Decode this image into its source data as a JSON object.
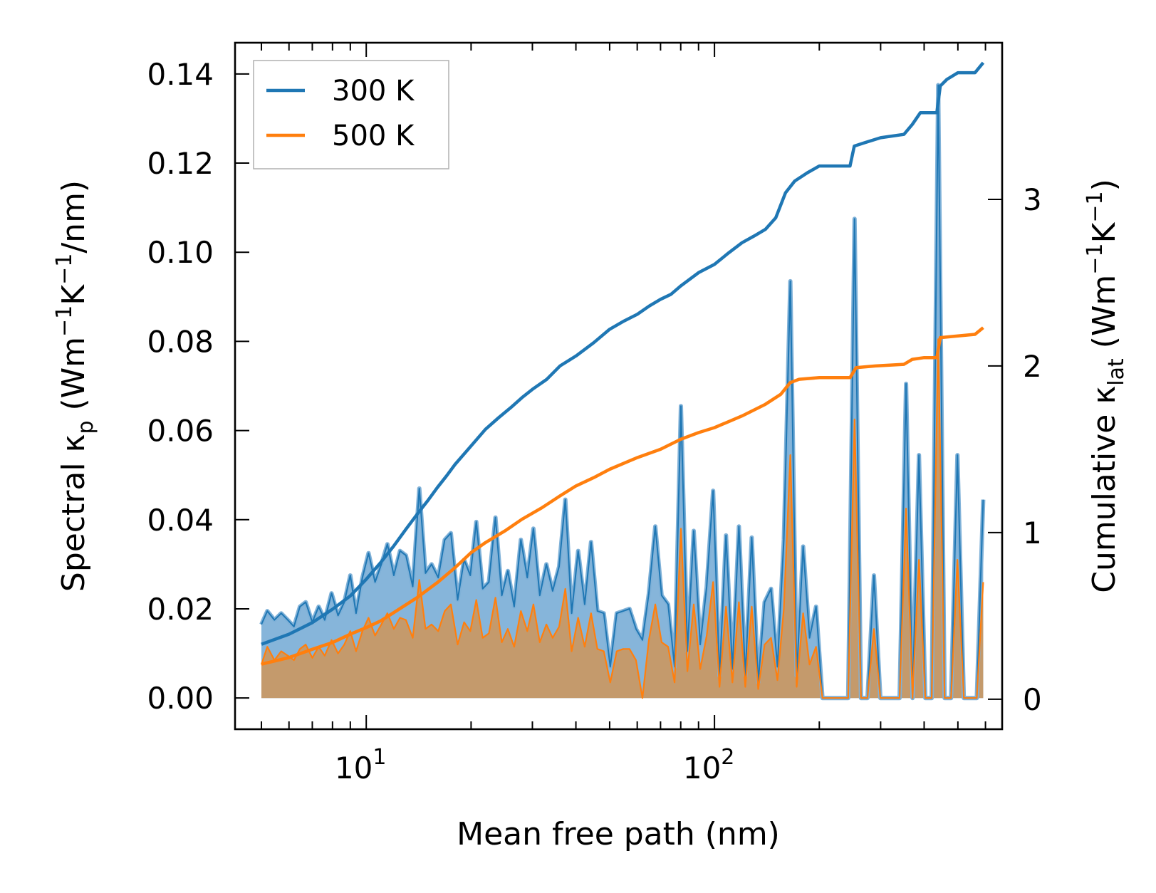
{
  "chart_data": {
    "type": "line",
    "title": "",
    "xlabel": "Mean free path (nm)",
    "ylabel": {
      "prefix": "Spectral κ",
      "sub": "p",
      "suffix": " (Wm",
      "sup1": "−1",
      "mid": "K",
      "sup2": "−1",
      "end": "/nm)"
    },
    "y2label": {
      "prefix": "Cumulative κ",
      "sub": "lat",
      "suffix": " (Wm",
      "sup1": "−1",
      "mid": "K",
      "sup2": "−1",
      "end": ")"
    },
    "xscale": "log",
    "xlim": [
      4.2,
      670
    ],
    "ylim": [
      -0.007,
      0.147
    ],
    "y2lim": [
      -0.18,
      3.94
    ],
    "xticks": [
      {
        "value": 10,
        "base": "10",
        "exp": "1"
      },
      {
        "value": 100,
        "base": "10",
        "exp": "2"
      }
    ],
    "yticks": [
      "0.00",
      "0.02",
      "0.04",
      "0.06",
      "0.08",
      "0.10",
      "0.12",
      "0.14"
    ],
    "y2ticks": [
      "0",
      "1",
      "2",
      "3"
    ],
    "legend": {
      "position": "upper-left",
      "entries": [
        "300 K",
        "500 K"
      ]
    },
    "colors": {
      "t300": "#1f77b4",
      "t500": "#ff7f0e",
      "fill300": "#7fb1d8",
      "fill500": "#c49a6c"
    },
    "spectral_300K": [
      [
        5.0,
        0.0165
      ],
      [
        5.2,
        0.0195
      ],
      [
        5.45,
        0.0175
      ],
      [
        5.7,
        0.019
      ],
      [
        5.95,
        0.0175
      ],
      [
        6.2,
        0.016
      ],
      [
        6.45,
        0.0205
      ],
      [
        6.7,
        0.0215
      ],
      [
        7.0,
        0.017
      ],
      [
        7.3,
        0.0205
      ],
      [
        7.6,
        0.0175
      ],
      [
        7.95,
        0.0235
      ],
      [
        8.3,
        0.0185
      ],
      [
        8.65,
        0.0215
      ],
      [
        9.0,
        0.0275
      ],
      [
        9.35,
        0.019
      ],
      [
        9.75,
        0.027
      ],
      [
        10.15,
        0.0325
      ],
      [
        10.6,
        0.026
      ],
      [
        11.05,
        0.03
      ],
      [
        11.5,
        0.0345
      ],
      [
        12.0,
        0.0275
      ],
      [
        12.5,
        0.033
      ],
      [
        13.0,
        0.032
      ],
      [
        13.6,
        0.025
      ],
      [
        14.2,
        0.047
      ],
      [
        14.8,
        0.028
      ],
      [
        15.4,
        0.03
      ],
      [
        16.1,
        0.027
      ],
      [
        16.8,
        0.0355
      ],
      [
        17.5,
        0.037
      ],
      [
        18.3,
        0.022
      ],
      [
        19.1,
        0.031
      ],
      [
        19.9,
        0.0275
      ],
      [
        20.7,
        0.0395
      ],
      [
        21.6,
        0.0245
      ],
      [
        22.5,
        0.026
      ],
      [
        23.5,
        0.0405
      ],
      [
        24.5,
        0.023
      ],
      [
        25.5,
        0.0285
      ],
      [
        26.6,
        0.0205
      ],
      [
        27.8,
        0.0355
      ],
      [
        29.0,
        0.027
      ],
      [
        30.2,
        0.038
      ],
      [
        31.5,
        0.023
      ],
      [
        32.9,
        0.03
      ],
      [
        34.3,
        0.024
      ],
      [
        35.8,
        0.0295
      ],
      [
        37.3,
        0.0445
      ],
      [
        38.9,
        0.019
      ],
      [
        40.6,
        0.033
      ],
      [
        42.4,
        0.021
      ],
      [
        44.2,
        0.035
      ],
      [
        46.1,
        0.0195
      ],
      [
        48.1,
        0.019
      ],
      [
        50.2,
        0.007
      ],
      [
        52.4,
        0.019
      ],
      [
        54.7,
        0.0195
      ],
      [
        57.0,
        0.02
      ],
      [
        59.5,
        0.0155
      ],
      [
        62.1,
        0.013
      ],
      [
        64.8,
        0.0235
      ],
      [
        67.6,
        0.0385
      ],
      [
        70.5,
        0.023
      ],
      [
        73.6,
        0.021
      ],
      [
        76.8,
        0.007
      ],
      [
        80.1,
        0.0655
      ],
      [
        83.6,
        0.0105
      ],
      [
        87.2,
        0.0375
      ],
      [
        91.0,
        0.012
      ],
      [
        95.0,
        0.025
      ],
      [
        99.1,
        0.0465
      ],
      [
        103.4,
        0.005
      ],
      [
        107.9,
        0.0365
      ],
      [
        112.6,
        0.0065
      ],
      [
        117.5,
        0.0385
      ],
      [
        122.6,
        0.005
      ],
      [
        127.9,
        0.036
      ],
      [
        133.5,
        0.0035
      ],
      [
        139.3,
        0.0215
      ],
      [
        145.3,
        0.0245
      ],
      [
        151.6,
        0.007
      ],
      [
        158.2,
        0.0355
      ],
      [
        165.1,
        0.0935
      ],
      [
        172.2,
        0.005
      ],
      [
        179.7,
        0.034
      ],
      [
        187.5,
        0.0135
      ],
      [
        195.7,
        0.0205
      ],
      [
        204.2,
        0.0
      ],
      [
        213.1,
        0.0
      ],
      [
        222.3,
        0.0
      ],
      [
        232.0,
        0.0
      ],
      [
        242.0,
        0.0
      ],
      [
        252.5,
        0.1075
      ],
      [
        263.5,
        0.0
      ],
      [
        275.0,
        0.0
      ],
      [
        287.0,
        0.0275
      ],
      [
        299.5,
        0.0
      ],
      [
        312.5,
        0.0
      ],
      [
        326.0,
        0.0
      ],
      [
        340.0,
        0.0
      ],
      [
        355.0,
        0.0705
      ],
      [
        370.5,
        0.0
      ],
      [
        386.5,
        0.0545
      ],
      [
        403.0,
        0.0
      ],
      [
        420.5,
        0.0
      ],
      [
        439.0,
        0.1375
      ],
      [
        458.0,
        0.0
      ],
      [
        478.0,
        0.0
      ],
      [
        498.5,
        0.0545
      ],
      [
        520.0,
        0.0
      ],
      [
        543.0,
        0.0
      ],
      [
        566.5,
        0.0
      ],
      [
        591.0,
        0.0445
      ]
    ],
    "spectral_500K": [
      [
        5.0,
        0.0075
      ],
      [
        5.2,
        0.0115
      ],
      [
        5.45,
        0.0085
      ],
      [
        5.7,
        0.0105
      ],
      [
        5.95,
        0.0095
      ],
      [
        6.2,
        0.0085
      ],
      [
        6.45,
        0.011
      ],
      [
        6.7,
        0.012
      ],
      [
        7.0,
        0.009
      ],
      [
        7.3,
        0.0115
      ],
      [
        7.6,
        0.0095
      ],
      [
        7.95,
        0.013
      ],
      [
        8.3,
        0.01
      ],
      [
        8.65,
        0.012
      ],
      [
        9.0,
        0.015
      ],
      [
        9.35,
        0.0105
      ],
      [
        9.75,
        0.015
      ],
      [
        10.15,
        0.018
      ],
      [
        10.6,
        0.014
      ],
      [
        11.05,
        0.0165
      ],
      [
        11.5,
        0.019
      ],
      [
        12.0,
        0.0155
      ],
      [
        12.5,
        0.018
      ],
      [
        13.0,
        0.0175
      ],
      [
        13.6,
        0.0135
      ],
      [
        14.2,
        0.0265
      ],
      [
        14.8,
        0.0155
      ],
      [
        15.4,
        0.0165
      ],
      [
        16.1,
        0.015
      ],
      [
        16.8,
        0.0195
      ],
      [
        17.5,
        0.021
      ],
      [
        18.3,
        0.012
      ],
      [
        19.1,
        0.017
      ],
      [
        19.9,
        0.015
      ],
      [
        20.7,
        0.022
      ],
      [
        21.6,
        0.0135
      ],
      [
        22.5,
        0.0145
      ],
      [
        23.5,
        0.0225
      ],
      [
        24.5,
        0.0125
      ],
      [
        25.5,
        0.0155
      ],
      [
        26.6,
        0.0115
      ],
      [
        27.8,
        0.0195
      ],
      [
        29.0,
        0.015
      ],
      [
        30.2,
        0.021
      ],
      [
        31.5,
        0.0125
      ],
      [
        32.9,
        0.0165
      ],
      [
        34.3,
        0.0135
      ],
      [
        35.8,
        0.016
      ],
      [
        37.3,
        0.0245
      ],
      [
        38.9,
        0.0105
      ],
      [
        40.6,
        0.018
      ],
      [
        42.4,
        0.0115
      ],
      [
        44.2,
        0.019
      ],
      [
        46.1,
        0.011
      ],
      [
        48.1,
        0.0105
      ],
      [
        50.2,
        0.0035
      ],
      [
        52.4,
        0.0105
      ],
      [
        54.7,
        0.011
      ],
      [
        57.0,
        0.011
      ],
      [
        59.5,
        0.0085
      ],
      [
        62.1,
        0.0
      ],
      [
        64.8,
        0.013
      ],
      [
        67.6,
        0.021
      ],
      [
        70.5,
        0.0125
      ],
      [
        73.6,
        0.0115
      ],
      [
        76.8,
        0.0035
      ],
      [
        80.1,
        0.038
      ],
      [
        83.6,
        0.006
      ],
      [
        87.2,
        0.021
      ],
      [
        91.0,
        0.0065
      ],
      [
        95.0,
        0.014
      ],
      [
        99.1,
        0.026
      ],
      [
        103.4,
        0.0025
      ],
      [
        107.9,
        0.0205
      ],
      [
        112.6,
        0.0035
      ],
      [
        117.5,
        0.0215
      ],
      [
        122.6,
        0.0025
      ],
      [
        127.9,
        0.0205
      ],
      [
        133.5,
        0.002
      ],
      [
        139.3,
        0.012
      ],
      [
        145.3,
        0.0135
      ],
      [
        151.6,
        0.004
      ],
      [
        158.2,
        0.02
      ],
      [
        165.1,
        0.0545
      ],
      [
        172.2,
        0.0025
      ],
      [
        179.7,
        0.019
      ],
      [
        187.5,
        0.0075
      ],
      [
        195.7,
        0.0115
      ],
      [
        204.2,
        0.0
      ],
      [
        213.1,
        0.0
      ],
      [
        222.3,
        0.0
      ],
      [
        232.0,
        0.0
      ],
      [
        242.0,
        0.0
      ],
      [
        252.5,
        0.0625
      ],
      [
        263.5,
        0.0
      ],
      [
        275.0,
        0.0
      ],
      [
        287.0,
        0.0155
      ],
      [
        299.5,
        0.0
      ],
      [
        312.5,
        0.0
      ],
      [
        326.0,
        0.0
      ],
      [
        340.0,
        0.0
      ],
      [
        355.0,
        0.0425
      ],
      [
        370.5,
        0.0
      ],
      [
        386.5,
        0.031
      ],
      [
        403.0,
        0.0
      ],
      [
        420.5,
        0.0
      ],
      [
        439.0,
        0.0805
      ],
      [
        458.0,
        0.0
      ],
      [
        478.0,
        0.0
      ],
      [
        498.5,
        0.031
      ],
      [
        520.0,
        0.0
      ],
      [
        543.0,
        0.0
      ],
      [
        566.5,
        0.0
      ],
      [
        591.0,
        0.026
      ]
    ],
    "cumulative_300K": [
      [
        5.0,
        0.33
      ],
      [
        6.0,
        0.39
      ],
      [
        7.0,
        0.46
      ],
      [
        8.0,
        0.54
      ],
      [
        9.0,
        0.62
      ],
      [
        10.0,
        0.72
      ],
      [
        11.0,
        0.82
      ],
      [
        12.0,
        0.92
      ],
      [
        13.0,
        1.02
      ],
      [
        14.0,
        1.11
      ],
      [
        15.0,
        1.19
      ],
      [
        16.0,
        1.27
      ],
      [
        17.0,
        1.34
      ],
      [
        18.0,
        1.41
      ],
      [
        20.0,
        1.52
      ],
      [
        22.0,
        1.62
      ],
      [
        24.0,
        1.69
      ],
      [
        26.0,
        1.75
      ],
      [
        28.0,
        1.81
      ],
      [
        30.0,
        1.86
      ],
      [
        33.0,
        1.92
      ],
      [
        36.0,
        2.0
      ],
      [
        40.0,
        2.06
      ],
      [
        45.0,
        2.14
      ],
      [
        50.0,
        2.22
      ],
      [
        55.0,
        2.27
      ],
      [
        60.0,
        2.31
      ],
      [
        65.0,
        2.36
      ],
      [
        70.0,
        2.4
      ],
      [
        75.0,
        2.43
      ],
      [
        80.0,
        2.48
      ],
      [
        90.0,
        2.56
      ],
      [
        100.0,
        2.61
      ],
      [
        110.0,
        2.68
      ],
      [
        120.0,
        2.74
      ],
      [
        130.0,
        2.78
      ],
      [
        140.0,
        2.82
      ],
      [
        150.0,
        2.89
      ],
      [
        160.0,
        3.04
      ],
      [
        170.0,
        3.11
      ],
      [
        185.0,
        3.16
      ],
      [
        200.0,
        3.2
      ],
      [
        245.0,
        3.2
      ],
      [
        252.0,
        3.32
      ],
      [
        270.0,
        3.34
      ],
      [
        300.0,
        3.37
      ],
      [
        350.0,
        3.39
      ],
      [
        370.0,
        3.45
      ],
      [
        390.0,
        3.52
      ],
      [
        435.0,
        3.52
      ],
      [
        445.0,
        3.68
      ],
      [
        465.0,
        3.72
      ],
      [
        500.0,
        3.76
      ],
      [
        560.0,
        3.76
      ],
      [
        591.0,
        3.82
      ]
    ],
    "cumulative_500K": [
      [
        5.0,
        0.21
      ],
      [
        6.0,
        0.25
      ],
      [
        7.0,
        0.3
      ],
      [
        8.0,
        0.34
      ],
      [
        9.0,
        0.39
      ],
      [
        10.0,
        0.43
      ],
      [
        11.0,
        0.47
      ],
      [
        12.0,
        0.52
      ],
      [
        14.0,
        0.61
      ],
      [
        16.0,
        0.7
      ],
      [
        18.0,
        0.79
      ],
      [
        20.0,
        0.88
      ],
      [
        22.0,
        0.94
      ],
      [
        25.0,
        1.01
      ],
      [
        28.0,
        1.08
      ],
      [
        32.0,
        1.15
      ],
      [
        36.0,
        1.22
      ],
      [
        40.0,
        1.28
      ],
      [
        45.0,
        1.33
      ],
      [
        50.0,
        1.38
      ],
      [
        60.0,
        1.45
      ],
      [
        70.0,
        1.5
      ],
      [
        80.0,
        1.56
      ],
      [
        90.0,
        1.6
      ],
      [
        100.0,
        1.63
      ],
      [
        120.0,
        1.7
      ],
      [
        140.0,
        1.77
      ],
      [
        155.0,
        1.83
      ],
      [
        165.0,
        1.9
      ],
      [
        175.0,
        1.92
      ],
      [
        200.0,
        1.93
      ],
      [
        245.0,
        1.93
      ],
      [
        255.0,
        1.99
      ],
      [
        290.0,
        2.0
      ],
      [
        350.0,
        2.01
      ],
      [
        370.0,
        2.04
      ],
      [
        400.0,
        2.05
      ],
      [
        435.0,
        2.05
      ],
      [
        445.0,
        2.17
      ],
      [
        500.0,
        2.18
      ],
      [
        560.0,
        2.19
      ],
      [
        591.0,
        2.23
      ]
    ]
  }
}
